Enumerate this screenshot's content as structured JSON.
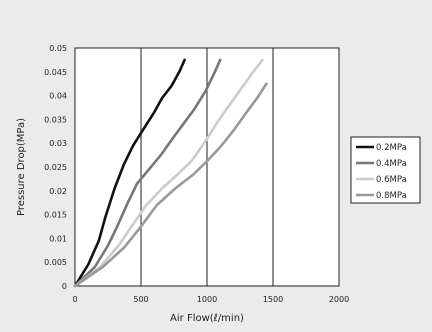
{
  "chart_data": {
    "type": "line",
    "title": "",
    "xlabel": "Air Flow(ℓ/min)",
    "ylabel": "Pressure Drop(MPa)",
    "xlim": [
      0,
      2000
    ],
    "ylim": [
      0,
      0.05
    ],
    "xticks": [
      0,
      500,
      1000,
      1500,
      2000
    ],
    "yticks": [
      0,
      0.005,
      0.01,
      0.015,
      0.02,
      0.025,
      0.03,
      0.035,
      0.04,
      0.045,
      0.05
    ],
    "xtick_labels": [
      "0",
      "500",
      "1000",
      "1500",
      "2000"
    ],
    "ytick_labels": [
      "0",
      "0.005",
      "0.01",
      "0.015",
      "0.02",
      "0.025",
      "0.03",
      "0.035",
      "0.04",
      "0.045",
      "0.05"
    ],
    "grid": {
      "vertical": true,
      "horizontal": false
    },
    "legend_position": "right",
    "series": [
      {
        "name": "0.2MPa",
        "color": "#111111",
        "x": [
          0,
          100,
          180,
          230,
          300,
          370,
          440,
          520,
          600,
          660,
          730,
          790,
          830
        ],
        "y": [
          0,
          0.0045,
          0.0095,
          0.0145,
          0.0205,
          0.0255,
          0.0295,
          0.033,
          0.0365,
          0.0395,
          0.042,
          0.045,
          0.0475
        ]
      },
      {
        "name": "0.4MPa",
        "color": "#777777",
        "x": [
          0,
          150,
          250,
          320,
          400,
          470,
          560,
          650,
          740,
          820,
          900,
          990,
          1060,
          1100
        ],
        "y": [
          0,
          0.004,
          0.0085,
          0.0125,
          0.0175,
          0.0215,
          0.0245,
          0.0275,
          0.031,
          0.034,
          0.037,
          0.041,
          0.045,
          0.0475
        ]
      },
      {
        "name": "0.6MPa",
        "color": "#cccccc",
        "x": [
          0,
          190,
          330,
          440,
          540,
          660,
          780,
          890,
          990,
          1080,
          1170,
          1260,
          1350,
          1420
        ],
        "y": [
          0,
          0.004,
          0.0085,
          0.013,
          0.017,
          0.0205,
          0.0235,
          0.0265,
          0.0305,
          0.0345,
          0.038,
          0.0415,
          0.045,
          0.0475
        ]
      },
      {
        "name": "0.8MPa",
        "color": "#999999",
        "x": [
          0,
          210,
          370,
          500,
          620,
          760,
          900,
          1010,
          1110,
          1210,
          1300,
          1380,
          1450
        ],
        "y": [
          0,
          0.004,
          0.008,
          0.0125,
          0.017,
          0.0205,
          0.0235,
          0.0265,
          0.0295,
          0.033,
          0.0365,
          0.0395,
          0.0425
        ]
      }
    ]
  }
}
